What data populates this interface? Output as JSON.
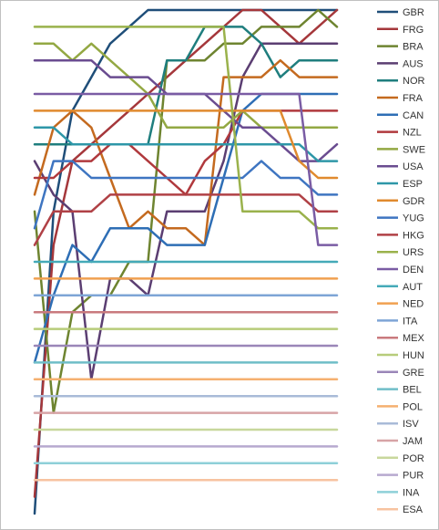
{
  "chart_data": {
    "type": "line",
    "x": [
      1,
      2,
      3,
      4,
      5,
      6,
      7,
      8,
      9,
      10,
      11,
      12,
      13,
      14,
      15,
      16,
      17
    ],
    "ylim": [
      1,
      31
    ],
    "y_direction": "inverted",
    "grid": false,
    "legend_position": "right",
    "series": [
      {
        "name": "GBR",
        "color": "#1F4E79",
        "values": [
          31,
          13,
          7,
          5,
          3,
          2,
          1,
          1,
          1,
          1,
          1,
          1,
          1,
          1,
          1,
          1,
          1
        ]
      },
      {
        "name": "FRG",
        "color": "#A5373B",
        "values": [
          30,
          15,
          10,
          9,
          8,
          7,
          6,
          5,
          4,
          3,
          2,
          1,
          1,
          2,
          3,
          2,
          1
        ]
      },
      {
        "name": "BRA",
        "color": "#6E8430",
        "values": [
          13,
          25,
          19,
          18,
          18,
          16,
          16,
          4,
          4,
          4,
          3,
          3,
          2,
          2,
          2,
          1,
          2
        ]
      },
      {
        "name": "AUS",
        "color": "#5B3E72",
        "values": [
          10,
          12,
          13,
          23,
          17,
          17,
          18,
          13,
          13,
          13,
          10,
          5,
          3,
          3,
          3,
          3,
          3
        ]
      },
      {
        "name": "NOR",
        "color": "#1F7E7E",
        "values": [
          9,
          9,
          9,
          9,
          9,
          9,
          9,
          4,
          4,
          2,
          2,
          2,
          3,
          5,
          4,
          4,
          4
        ]
      },
      {
        "name": "FRA",
        "color": "#C46A1F",
        "values": [
          12,
          8,
          7,
          8,
          11,
          14,
          13,
          14,
          14,
          15,
          5,
          5,
          5,
          4,
          5,
          5,
          5
        ]
      },
      {
        "name": "CAN",
        "color": "#2E6EB5",
        "values": [
          22,
          18,
          15,
          16,
          14,
          14,
          14,
          15,
          15,
          15,
          11,
          7,
          6,
          6,
          6,
          6,
          6
        ]
      },
      {
        "name": "NZL",
        "color": "#B0393D",
        "values": [
          11,
          11,
          10,
          10,
          9,
          9,
          10,
          11,
          12,
          10,
          9,
          7,
          7,
          7,
          7,
          7,
          7
        ]
      },
      {
        "name": "SWE",
        "color": "#93A843",
        "values": [
          3,
          3,
          4,
          3,
          4,
          5,
          6,
          8,
          8,
          8,
          8,
          7,
          8,
          8,
          8,
          8,
          8
        ]
      },
      {
        "name": "USA",
        "color": "#6A4C90",
        "values": [
          4,
          4,
          4,
          4,
          5,
          5,
          5,
          6,
          6,
          6,
          7,
          8,
          8,
          9,
          10,
          10,
          9
        ]
      },
      {
        "name": "ESP",
        "color": "#2E97A8",
        "values": [
          8,
          8,
          9,
          9,
          9,
          9,
          9,
          9,
          9,
          9,
          9,
          9,
          9,
          9,
          9,
          10,
          10
        ]
      },
      {
        "name": "GDR",
        "color": "#E08A2E",
        "values": [
          7,
          7,
          7,
          7,
          7,
          7,
          7,
          7,
          7,
          7,
          7,
          7,
          7,
          7,
          10,
          11,
          11
        ]
      },
      {
        "name": "YUG",
        "color": "#3E75C1",
        "values": [
          14,
          10,
          10,
          11,
          11,
          11,
          11,
          11,
          11,
          11,
          11,
          11,
          10,
          11,
          11,
          12,
          12
        ]
      },
      {
        "name": "HKG",
        "color": "#B04146",
        "values": [
          15,
          13,
          13,
          13,
          12,
          12,
          12,
          12,
          12,
          12,
          12,
          12,
          12,
          12,
          12,
          13,
          13
        ]
      },
      {
        "name": "URS",
        "color": "#9AB24C",
        "values": [
          2,
          2,
          2,
          2,
          2,
          2,
          2,
          2,
          2,
          2,
          2,
          13,
          13,
          13,
          13,
          14,
          14
        ]
      },
      {
        "name": "DEN",
        "color": "#7A5CA4",
        "values": [
          6,
          6,
          6,
          6,
          6,
          6,
          6,
          6,
          6,
          6,
          6,
          6,
          6,
          6,
          6,
          15,
          15
        ]
      },
      {
        "name": "AUT",
        "color": "#45AAB8",
        "values": [
          16,
          16,
          16,
          16,
          16,
          16,
          16,
          16,
          16,
          16,
          16,
          16,
          16,
          16,
          16,
          16,
          16
        ]
      },
      {
        "name": "NED",
        "color": "#F0A050",
        "values": [
          17,
          17,
          17,
          17,
          17,
          17,
          17,
          17,
          17,
          17,
          17,
          17,
          17,
          17,
          17,
          17,
          17
        ]
      },
      {
        "name": "ITA",
        "color": "#7EA5D6",
        "values": [
          18,
          18,
          18,
          18,
          18,
          18,
          18,
          18,
          18,
          18,
          18,
          18,
          18,
          18,
          18,
          18,
          18
        ]
      },
      {
        "name": "MEX",
        "color": "#C97A7E",
        "values": [
          19,
          19,
          19,
          19,
          19,
          19,
          19,
          19,
          19,
          19,
          19,
          19,
          19,
          19,
          19,
          19,
          19
        ]
      },
      {
        "name": "HUN",
        "color": "#B7CC7A",
        "values": [
          20,
          20,
          20,
          20,
          20,
          20,
          20,
          20,
          20,
          20,
          20,
          20,
          20,
          20,
          20,
          20,
          20
        ]
      },
      {
        "name": "GRE",
        "color": "#9A86B8",
        "values": [
          21,
          21,
          21,
          21,
          21,
          21,
          21,
          21,
          21,
          21,
          21,
          21,
          21,
          21,
          21,
          21,
          21
        ]
      },
      {
        "name": "BEL",
        "color": "#6FBEC8",
        "values": [
          22,
          22,
          22,
          22,
          22,
          22,
          22,
          22,
          22,
          22,
          22,
          22,
          22,
          22,
          22,
          22,
          22
        ]
      },
      {
        "name": "POL",
        "color": "#F5B070",
        "values": [
          23,
          23,
          23,
          23,
          23,
          23,
          23,
          23,
          23,
          23,
          23,
          23,
          23,
          23,
          23,
          23,
          23
        ]
      },
      {
        "name": "ISV",
        "color": "#A9BBD8",
        "values": [
          24,
          24,
          24,
          24,
          24,
          24,
          24,
          24,
          24,
          24,
          24,
          24,
          24,
          24,
          24,
          24,
          24
        ]
      },
      {
        "name": "JAM",
        "color": "#D7A4A6",
        "values": [
          25,
          25,
          25,
          25,
          25,
          25,
          25,
          25,
          25,
          25,
          25,
          25,
          25,
          25,
          25,
          25,
          25
        ]
      },
      {
        "name": "POR",
        "color": "#C8D79C",
        "values": [
          26,
          26,
          26,
          26,
          26,
          26,
          26,
          26,
          26,
          26,
          26,
          26,
          26,
          26,
          26,
          26,
          26
        ]
      },
      {
        "name": "PUR",
        "color": "#B7A9CF",
        "values": [
          27,
          27,
          27,
          27,
          27,
          27,
          27,
          27,
          27,
          27,
          27,
          27,
          27,
          27,
          27,
          27,
          27
        ]
      },
      {
        "name": "INA",
        "color": "#8ED0D8",
        "values": [
          28,
          28,
          28,
          28,
          28,
          28,
          28,
          28,
          28,
          28,
          28,
          28,
          28,
          28,
          28,
          28,
          28
        ]
      },
      {
        "name": "ESA",
        "color": "#F7C3A0",
        "values": [
          29,
          29,
          29,
          29,
          29,
          29,
          29,
          29,
          29,
          29,
          29,
          29,
          29,
          29,
          29,
          29,
          29
        ]
      }
    ]
  }
}
